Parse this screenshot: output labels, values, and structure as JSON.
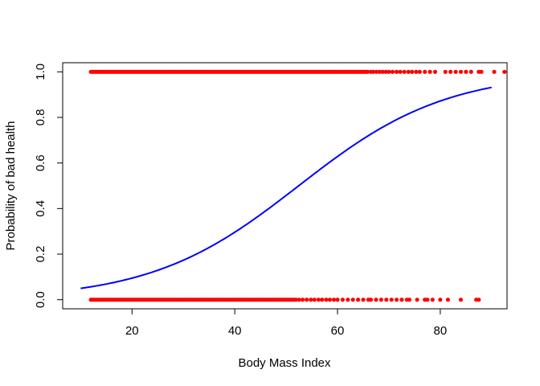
{
  "chart_data": {
    "type": "scatter",
    "title": "",
    "xlabel": "Body Mass Index",
    "ylabel": "Probability of bad health",
    "xlim": [
      6.5,
      93
    ],
    "ylim": [
      -0.04,
      1.04
    ],
    "x_ticks": [
      20,
      40,
      60,
      80
    ],
    "y_ticks": [
      0.0,
      0.2,
      0.4,
      0.6,
      0.8,
      1.0
    ],
    "x_tick_labels": [
      "20",
      "40",
      "60",
      "80"
    ],
    "y_tick_labels": [
      "0.0",
      "0.2",
      "0.4",
      "0.6",
      "0.8",
      "1.0"
    ],
    "grid": false,
    "series": [
      {
        "type": "scatter",
        "color": "#ff0000",
        "y": 1,
        "dense_x_range": [
          12,
          66
        ],
        "sparse_x": [
          66.5,
          67,
          67.6,
          68.2,
          68.8,
          69.4,
          70,
          70.7,
          71.5,
          72.2,
          73,
          73.8,
          74.5,
          75.3,
          76,
          77,
          78,
          79,
          81,
          82,
          83,
          84,
          85,
          86,
          87.5,
          88,
          90.5,
          92.5
        ]
      },
      {
        "type": "scatter",
        "color": "#ff0000",
        "y": 0,
        "dense_x_range": [
          12,
          52
        ],
        "sparse_x": [
          52.5,
          53.2,
          54,
          54.8,
          55.5,
          56.3,
          57,
          57.8,
          58.5,
          59.3,
          60,
          61,
          62,
          63,
          64,
          65,
          66,
          66.5,
          67.5,
          68.5,
          69.5,
          70.5,
          71.5,
          72.5,
          73.5,
          74,
          75.5,
          77,
          77.5,
          78.5,
          80,
          81.5,
          84,
          87,
          87.5
        ]
      },
      {
        "type": "line",
        "color": "#0000ff",
        "curve": "logistic",
        "intercept": -3.65,
        "slope": 0.0696,
        "x_range": [
          10,
          90
        ]
      }
    ]
  }
}
